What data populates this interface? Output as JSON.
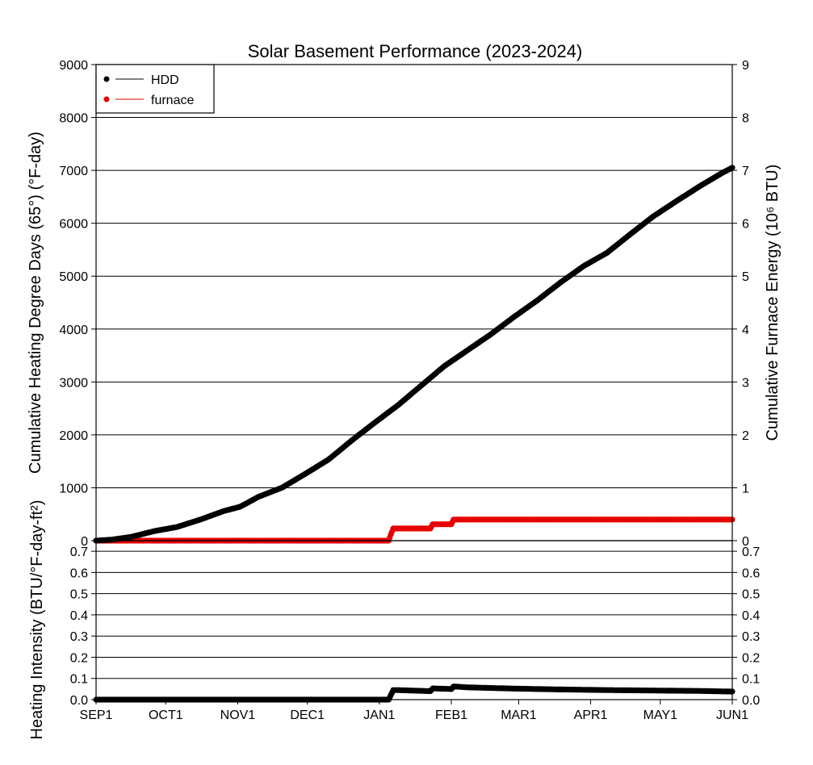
{
  "chart_data": [
    {
      "type": "line",
      "title": "Solar Basement Performance (2023-2024)",
      "x_start": "2023-09-01",
      "x_end": "2024-06-01",
      "ylabel_left": "Cumulative Heating Degree Days (65°) (°F-day)",
      "ylabel_right": "Cumulative Furnace Energy (10⁶ BTU)",
      "ylim_left": [
        0,
        9000
      ],
      "ylim_right": [
        0,
        9
      ],
      "yticks_left": [
        "0",
        "1000",
        "2000",
        "3000",
        "4000",
        "5000",
        "6000",
        "7000",
        "8000",
        "9000"
      ],
      "yticks_right": [
        "0",
        "1",
        "2",
        "3",
        "4",
        "5",
        "6",
        "7",
        "8",
        "9"
      ],
      "grid": true,
      "legend": "top-left",
      "series": [
        {
          "name": "HDD",
          "color": "#000000",
          "axis": "left",
          "x_days": [
            0,
            7,
            15,
            25,
            35,
            45,
            55,
            62,
            70,
            80,
            90,
            100,
            110,
            120,
            130,
            140,
            150,
            160,
            170,
            180,
            190,
            200,
            210,
            220,
            230,
            240,
            250,
            260,
            270,
            274
          ],
          "y": [
            0,
            20,
            70,
            180,
            260,
            400,
            560,
            640,
            830,
            1000,
            1260,
            1530,
            1890,
            2230,
            2560,
            2930,
            3300,
            3600,
            3900,
            4230,
            4540,
            4880,
            5190,
            5440,
            5790,
            6130,
            6420,
            6700,
            6960,
            7050
          ]
        },
        {
          "name": "furnace",
          "color": "#e60000",
          "axis": "right",
          "x_days": [
            0,
            126,
            127,
            128,
            130,
            144,
            145,
            153,
            154,
            274
          ],
          "y": [
            0,
            0,
            0.12,
            0.23,
            0.23,
            0.23,
            0.31,
            0.31,
            0.4,
            0.4
          ]
        }
      ]
    },
    {
      "type": "line",
      "ylabel_left": "Heating Intensity (BTU/°F-day-ft²)",
      "ylim": [
        0,
        0.75
      ],
      "yticks": [
        "0.0",
        "0.1",
        "0.2",
        "0.3",
        "0.4",
        "0.5",
        "0.6",
        "0.7"
      ],
      "xticks": [
        "SEP1",
        "OCT1",
        "NOV1",
        "DEC1",
        "JAN1",
        "FEB1",
        "MAR1",
        "APR1",
        "MAY1",
        "JUN1"
      ],
      "xtick_days": [
        0,
        30,
        61,
        91,
        122,
        153,
        182,
        213,
        243,
        274
      ],
      "series": [
        {
          "name": "intensity",
          "color": "#000000",
          "x_days": [
            0,
            126,
            127,
            128,
            130,
            144,
            145,
            153,
            154,
            160,
            180,
            200,
            220,
            240,
            260,
            274
          ],
          "y": [
            0,
            0,
            0.022,
            0.045,
            0.045,
            0.04,
            0.053,
            0.05,
            0.062,
            0.058,
            0.052,
            0.048,
            0.045,
            0.043,
            0.041,
            0.038
          ]
        }
      ]
    }
  ]
}
